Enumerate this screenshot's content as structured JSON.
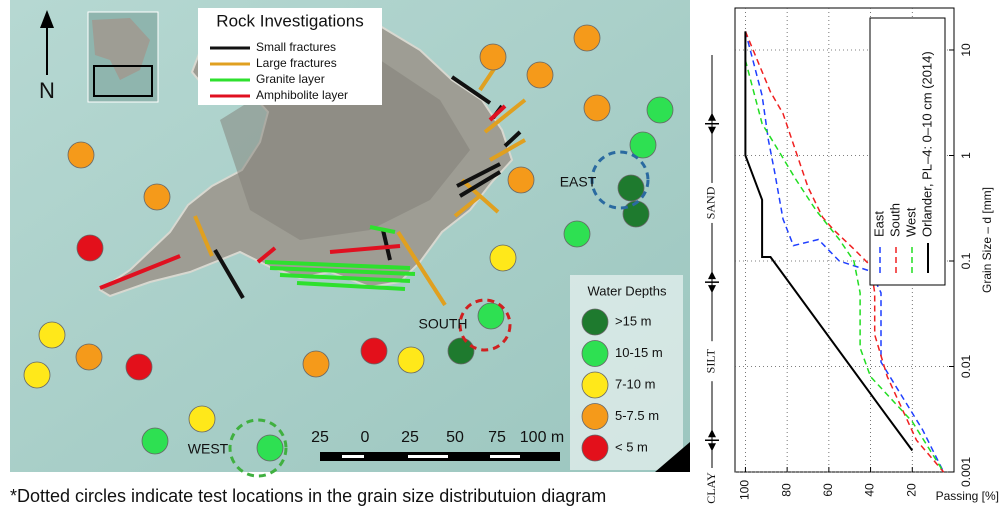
{
  "map": {
    "north_label": "N",
    "rock_legend": {
      "title": "Rock Investigations",
      "items": [
        {
          "name": "Small fractures",
          "color": "#111111"
        },
        {
          "name": "Large fractures",
          "color": "#e0a020"
        },
        {
          "name": "Granite layer",
          "color": "#2ee02e"
        },
        {
          "name": "Amphibolite layer",
          "color": "#e01020"
        }
      ]
    },
    "depth_legend": {
      "title": "Water Depths",
      "items": [
        {
          "name": ">15 m",
          "color": "#1e7a2e"
        },
        {
          "name": "10-15 m",
          "color": "#2ee052"
        },
        {
          "name": "7-10 m",
          "color": "#ffe81a"
        },
        {
          "name": "5-7.5 m",
          "color": "#f59a1a"
        },
        {
          "name": "< 5 m",
          "color": "#e3101b"
        }
      ]
    },
    "sites": [
      {
        "label": "EAST",
        "color": "#2a6aa0"
      },
      {
        "label": "SOUTH",
        "color": "#d02020"
      },
      {
        "label": "WEST",
        "color": "#40b040"
      }
    ],
    "scale_labels": [
      "25",
      "0",
      "25",
      "50",
      "75",
      "100 m"
    ],
    "footnote": "*Dotted circles indicate test locations in the grain size distributuion diagram"
  },
  "chart_data": {
    "type": "line",
    "x_label": "Passing [%]",
    "y_label": "Grain Size – d [mm]",
    "xlim": [
      105,
      0
    ],
    "xticks": [
      100,
      80,
      60,
      40,
      20
    ],
    "ylim": [
      0.001,
      25
    ],
    "yticks": [
      0.001,
      0.01,
      0.1,
      1,
      10
    ],
    "y_scale": "log",
    "grid": true,
    "soil_classes": [
      "SAND",
      "SILT",
      "CLAY"
    ],
    "class_boundaries": [
      2,
      0.063,
      0.002
    ],
    "series": [
      {
        "name": "East",
        "color": "#1f3fff",
        "dashed": true,
        "x": [
          100,
          92,
          89,
          86,
          82,
          77,
          65,
          55,
          40,
          35,
          35,
          15,
          5
        ],
        "values": [
          15,
          3.7,
          1.4,
          0.7,
          0.25,
          0.14,
          0.16,
          0.1,
          0.08,
          0.05,
          0.011,
          0.0025,
          0.001
        ]
      },
      {
        "name": "South",
        "color": "#f02020",
        "dashed": true,
        "x": [
          100,
          88,
          82,
          70,
          63,
          58,
          48,
          40,
          38,
          38,
          32,
          18,
          5
        ],
        "values": [
          15,
          4,
          2.5,
          0.5,
          0.26,
          0.2,
          0.13,
          0.09,
          0.05,
          0.02,
          0.008,
          0.002,
          0.001
        ]
      },
      {
        "name": "West",
        "color": "#22dd22",
        "dashed": true,
        "x": [
          100,
          92,
          84,
          76,
          66,
          55,
          48,
          45,
          45,
          40,
          20,
          5
        ],
        "values": [
          8,
          2,
          1.1,
          0.6,
          0.3,
          0.16,
          0.1,
          0.05,
          0.015,
          0.008,
          0.003,
          0.001
        ]
      },
      {
        "name": "Orlander, PL–4: 0–10 cm (2014)",
        "color": "#000000",
        "dashed": false,
        "x": [
          100,
          100,
          92,
          92,
          88,
          36,
          20
        ],
        "values": [
          15,
          1,
          0.38,
          0.109,
          0.109,
          0.0043,
          0.0016
        ]
      }
    ]
  }
}
